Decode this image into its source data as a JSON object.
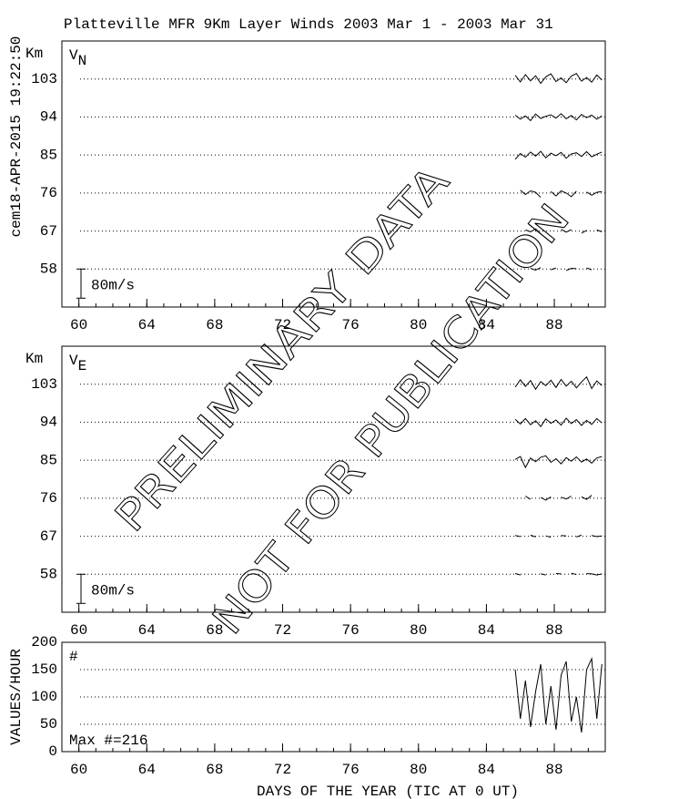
{
  "header": {
    "title": "Platteville MFR 9Km Layer Winds 2003 Mar  1 - 2003 Mar 31",
    "timestamp": "cem18-APR-2015 19:22:50"
  },
  "watermark": [
    "PRELIMINARY DATA",
    "NOT FOR PUBLICATION"
  ],
  "x_axis": {
    "label": "DAYS OF THE YEAR (TIC AT 0 UT)",
    "xlim": [
      59,
      91
    ],
    "xticks": [
      60,
      64,
      68,
      72,
      76,
      80,
      84,
      88
    ],
    "minor_ticks": [
      59,
      60,
      61,
      62,
      63,
      64,
      65,
      66,
      67,
      68,
      69,
      70,
      71,
      72,
      73,
      74,
      75,
      76,
      77,
      78,
      79,
      80,
      81,
      82,
      83,
      84,
      85,
      86,
      87,
      88,
      89,
      90,
      91
    ]
  },
  "chart_data": [
    {
      "type": "offset-line",
      "ylabel": "Km",
      "panel_label": "V",
      "panel_subscript": "N",
      "ylim": [
        49,
        112
      ],
      "yticks": [
        58,
        67,
        76,
        85,
        94,
        103
      ],
      "grid": true,
      "scale_bar": {
        "value": 80,
        "label": "80m/s"
      },
      "x": [
        85.7,
        86.0,
        86.3,
        86.6,
        86.9,
        87.2,
        87.5,
        87.8,
        88.1,
        88.4,
        88.7,
        89.0,
        89.3,
        89.6,
        89.9,
        90.2,
        90.5,
        90.8
      ],
      "series": [
        {
          "level": 103,
          "color": "#000000",
          "values": [
            10,
            -8,
            12,
            -5,
            9,
            -12,
            6,
            14,
            -7,
            3,
            -10,
            8,
            15,
            -6,
            4,
            -9,
            11,
            -3
          ]
        },
        {
          "level": 94,
          "color": "#000000",
          "values": [
            5,
            -6,
            3,
            -10,
            8,
            -4,
            2,
            6,
            -3,
            9,
            -5,
            4,
            -8,
            7,
            -2,
            5,
            -6,
            3
          ]
        },
        {
          "level": 85,
          "color": "#000000",
          "values": [
            -12,
            4,
            -6,
            8,
            -3,
            10,
            -8,
            5,
            -2,
            7,
            -9,
            3,
            6,
            -4,
            9,
            -5,
            2,
            8
          ]
        },
        {
          "level": 76,
          "color": "#000000",
          "values": [
            null,
            8,
            -4,
            6,
            2,
            -12,
            null,
            4,
            -8,
            6,
            0,
            -10,
            5,
            null,
            3,
            -6,
            2,
            4
          ]
        },
        {
          "level": 67,
          "color": "#000000",
          "values": [
            null,
            null,
            3,
            -2,
            6,
            -8,
            null,
            2,
            null,
            5,
            -3,
            4,
            null,
            -6,
            2,
            null,
            3,
            -2
          ]
        },
        {
          "level": 58,
          "color": "#000000",
          "values": [
            null,
            null,
            null,
            2,
            -3,
            4,
            null,
            -2,
            3,
            null,
            -4,
            2,
            1,
            null,
            3,
            -2,
            null,
            2
          ]
        }
      ]
    },
    {
      "type": "offset-line",
      "ylabel": "Km",
      "panel_label": "V",
      "panel_subscript": "E",
      "ylim": [
        49,
        112
      ],
      "yticks": [
        58,
        67,
        76,
        85,
        94,
        103
      ],
      "grid": true,
      "scale_bar": {
        "value": 80,
        "label": "80m/s"
      },
      "x": [
        85.7,
        86.0,
        86.3,
        86.6,
        86.9,
        87.2,
        87.5,
        87.8,
        88.1,
        88.4,
        88.7,
        89.0,
        89.3,
        89.6,
        89.9,
        90.2,
        90.5,
        90.8
      ],
      "series": [
        {
          "level": 103,
          "color": "#000000",
          "values": [
            -8,
            12,
            -6,
            10,
            -14,
            7,
            -4,
            11,
            -9,
            13,
            -5,
            8,
            -10,
            6,
            20,
            -12,
            9,
            -4
          ]
        },
        {
          "level": 94,
          "color": "#000000",
          "values": [
            8,
            -5,
            10,
            -7,
            4,
            -12,
            9,
            -3,
            6,
            -8,
            11,
            -4,
            7,
            -9,
            5,
            -6,
            10,
            -2
          ]
        },
        {
          "level": 85,
          "color": "#000000",
          "values": [
            2,
            10,
            -20,
            6,
            -4,
            8,
            12,
            -6,
            4,
            -10,
            7,
            -3,
            9,
            -5,
            3,
            -8,
            6,
            10
          ]
        },
        {
          "level": 76,
          "color": "#000000",
          "values": [
            4,
            null,
            6,
            -3,
            null,
            2,
            -5,
            4,
            null,
            3,
            -2,
            6,
            null,
            4,
            -3,
            8,
            null,
            2
          ]
        },
        {
          "level": 67,
          "color": "#000000",
          "values": [
            2,
            -1,
            null,
            3,
            -2,
            null,
            1,
            -3,
            null,
            2,
            1,
            null,
            -2,
            3,
            null,
            2,
            -1,
            1
          ]
        },
        {
          "level": 58,
          "color": "#000000",
          "values": [
            2,
            -2,
            null,
            3,
            null,
            1,
            -2,
            null,
            2,
            1,
            null,
            3,
            -1,
            null,
            2,
            1,
            -2,
            1
          ]
        }
      ]
    },
    {
      "type": "line",
      "ylabel": "VALUES/HOUR",
      "panel_label": "#",
      "note": "Max #=216",
      "ylim": [
        0,
        200
      ],
      "yticks": [
        0,
        50,
        100,
        150,
        200
      ],
      "grid": true,
      "x": [
        85.7,
        86.0,
        86.3,
        86.6,
        86.9,
        87.2,
        87.5,
        87.8,
        88.1,
        88.4,
        88.7,
        89.0,
        89.3,
        89.6,
        89.9,
        90.2,
        90.5,
        90.8
      ],
      "series": [
        {
          "color": "#000000",
          "values": [
            150,
            60,
            130,
            45,
            110,
            160,
            50,
            120,
            40,
            140,
            165,
            55,
            100,
            35,
            150,
            170,
            60,
            160
          ]
        }
      ]
    }
  ]
}
